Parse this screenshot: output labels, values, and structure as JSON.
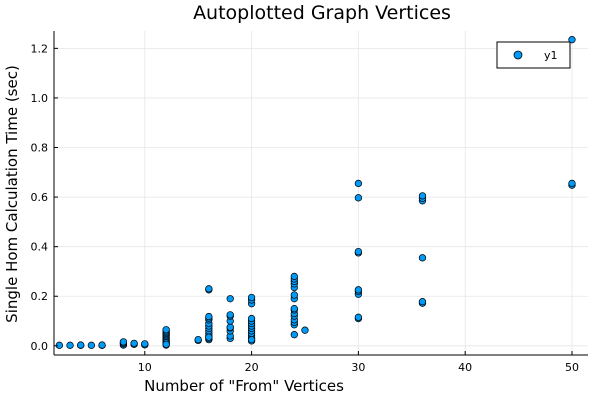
{
  "chart_data": {
    "type": "scatter",
    "title": "Autoplotted Graph Vertices",
    "xlabel": "Number of \"From\" Vertices",
    "ylabel": "Single Hom Calculation Time (sec)",
    "xlim": [
      1.5,
      51.5
    ],
    "ylim": [
      -0.037,
      1.27
    ],
    "xticks": [
      10,
      20,
      30,
      40,
      50
    ],
    "yticks": [
      0.0,
      0.2,
      0.4,
      0.6,
      0.8,
      1.0,
      1.2
    ],
    "ytick_labels": [
      "0.0",
      "0.2",
      "0.4",
      "0.6",
      "0.8",
      "1.0",
      "1.2"
    ],
    "grid": true,
    "legend_position": "top-right",
    "marker_color": "#009af9",
    "marker_edge_color": "#000000",
    "series": [
      {
        "name": "y1",
        "x": [
          2,
          3,
          4,
          4,
          5,
          6,
          6,
          8,
          8,
          8,
          8,
          9,
          9,
          10,
          10,
          12,
          12,
          12,
          12,
          12,
          12,
          12,
          12,
          12,
          12,
          12,
          12,
          12,
          12,
          15,
          15,
          16,
          16,
          16,
          16,
          16,
          16,
          16,
          16,
          16,
          16,
          16,
          16,
          16,
          16,
          18,
          18,
          18,
          18,
          18,
          18,
          18,
          18,
          18,
          20,
          20,
          20,
          20,
          20,
          20,
          20,
          20,
          20,
          20,
          20,
          20,
          20,
          20,
          24,
          24,
          24,
          24,
          24,
          24,
          24,
          24,
          24,
          24,
          24,
          24,
          24,
          24,
          24,
          25,
          30,
          30,
          30,
          30,
          30,
          30,
          30,
          30,
          30,
          36,
          36,
          36,
          36,
          36,
          36,
          50,
          50,
          50
        ],
        "y": [
          0.002,
          0.002,
          0.002,
          0.003,
          0.002,
          0.002,
          0.003,
          0.003,
          0.008,
          0.012,
          0.016,
          0.006,
          0.01,
          0.004,
          0.008,
          0.003,
          0.01,
          0.016,
          0.022,
          0.028,
          0.034,
          0.04,
          0.045,
          0.05,
          0.055,
          0.06,
          0.065,
          0.012,
          0.006,
          0.022,
          0.025,
          0.025,
          0.03,
          0.04,
          0.05,
          0.06,
          0.07,
          0.08,
          0.09,
          0.105,
          0.112,
          0.118,
          0.226,
          0.23,
          0.035,
          0.03,
          0.04,
          0.06,
          0.072,
          0.075,
          0.1,
          0.12,
          0.125,
          0.19,
          0.02,
          0.03,
          0.04,
          0.05,
          0.06,
          0.07,
          0.08,
          0.09,
          0.1,
          0.11,
          0.17,
          0.185,
          0.195,
          0.025,
          0.045,
          0.085,
          0.095,
          0.105,
          0.12,
          0.13,
          0.145,
          0.15,
          0.19,
          0.205,
          0.235,
          0.25,
          0.26,
          0.27,
          0.28,
          0.063,
          0.11,
          0.115,
          0.208,
          0.22,
          0.226,
          0.375,
          0.38,
          0.597,
          0.655,
          0.172,
          0.178,
          0.355,
          0.585,
          0.595,
          0.605,
          0.648,
          0.655,
          1.235
        ]
      }
    ]
  }
}
